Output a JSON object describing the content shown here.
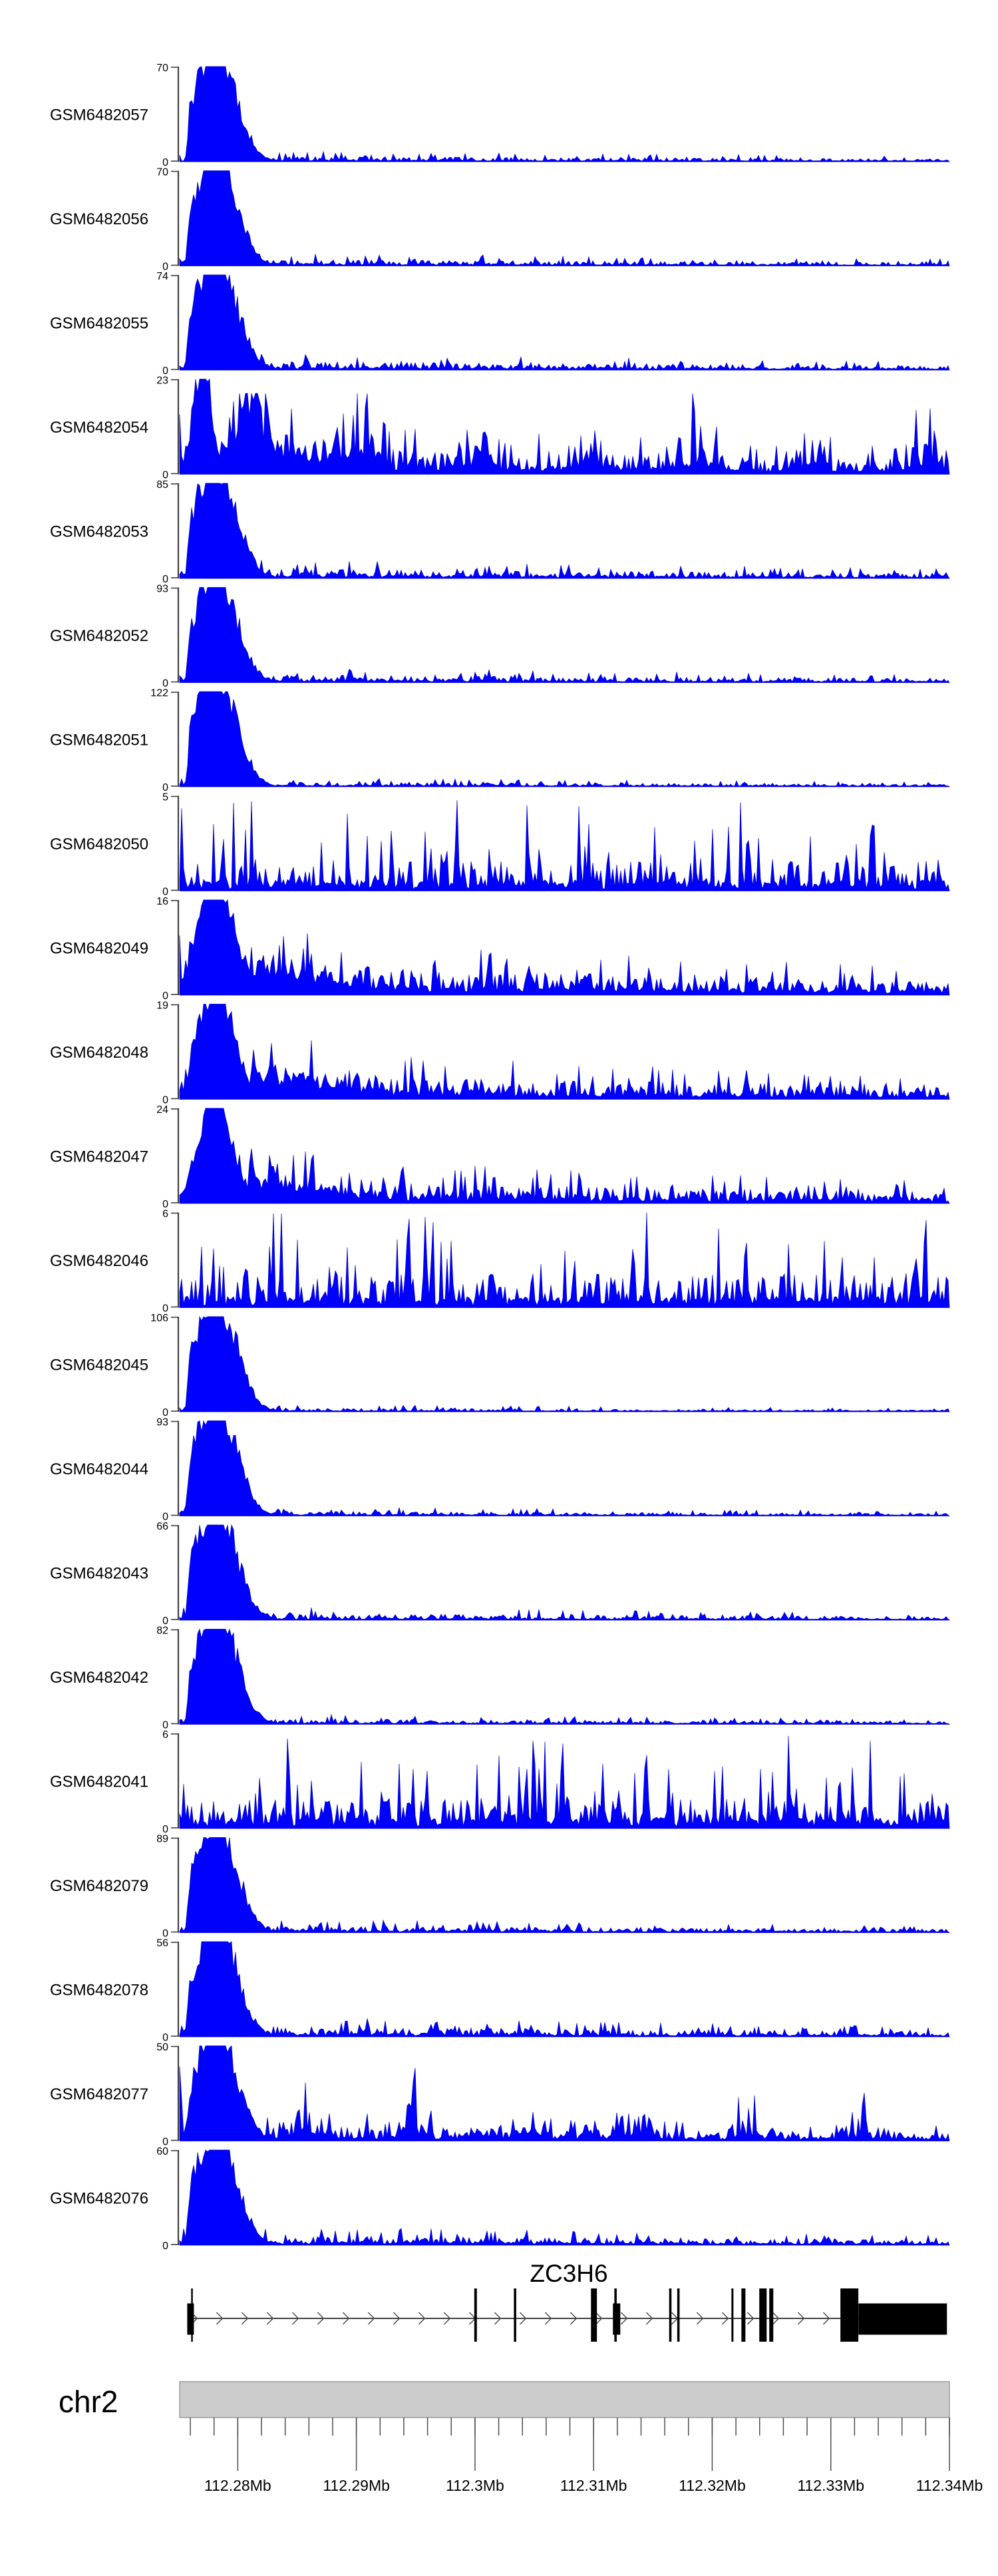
{
  "chart_data": {
    "type": "area",
    "description": "Stacked genome-browser read-coverage tracks over the ZC3H6 locus",
    "chromosome": "chr2",
    "region": {
      "start_mb": 112.2751,
      "end_mb": 112.34
    },
    "x_axis": {
      "unit": "Mb",
      "tick_labels": [
        "112.28Mb",
        "112.29Mb",
        "112.3Mb",
        "112.31Mb",
        "112.32Mb",
        "112.33Mb",
        "112.34Mb"
      ],
      "tick_positions_mb": [
        112.28,
        112.29,
        112.3,
        112.31,
        112.32,
        112.33,
        112.34
      ],
      "minor_tick_start_mb": 112.276,
      "minor_tick_interval_mb": 0.002,
      "minor_tick_count": 33
    },
    "y_axis": {
      "min_label": "0"
    },
    "tracks": [
      {
        "label": "GSM6482057",
        "ymax": 70,
        "ymin": 0,
        "profile": "peak",
        "tail": 0.032,
        "seed": 1
      },
      {
        "label": "GSM6482056",
        "ymax": 70,
        "ymin": 0,
        "profile": "peak",
        "tail": 0.04,
        "seed": 2
      },
      {
        "label": "GSM6482055",
        "ymax": 74,
        "ymin": 0,
        "profile": "peak",
        "tail": 0.05,
        "seed": 3
      },
      {
        "label": "GSM6482054",
        "ymax": 23,
        "ymin": 0,
        "profile": "peak",
        "peak_pos": 0.03,
        "peak_width": 0.011,
        "tail": 0.15,
        "mid": 0.3,
        "bumpy": true,
        "seed": 4
      },
      {
        "label": "GSM6482053",
        "ymax": 85,
        "ymin": 0,
        "profile": "peak",
        "tail": 0.055,
        "seed": 5
      },
      {
        "label": "GSM6482052",
        "ymax": 93,
        "ymin": 0,
        "profile": "peak",
        "tail": 0.045,
        "seed": 6
      },
      {
        "label": "GSM6482051",
        "ymax": 122,
        "ymin": 0,
        "profile": "peak",
        "tail": 0.028,
        "seed": 7
      },
      {
        "label": "GSM6482050",
        "ymax": 5,
        "ymin": 0,
        "profile": "noise",
        "level": 0.55,
        "seed": 8
      },
      {
        "label": "GSM6482049",
        "ymax": 16,
        "ymin": 0,
        "profile": "peak",
        "peak_width": 0.024,
        "tail": 0.16,
        "mid": 0.32,
        "seed": 9
      },
      {
        "label": "GSM6482048",
        "ymax": 19,
        "ymin": 0,
        "profile": "peak",
        "peak_width": 0.022,
        "tail": 0.14,
        "mid": 0.28,
        "seed": 10
      },
      {
        "label": "GSM6482047",
        "ymax": 24,
        "ymin": 0,
        "profile": "peak",
        "peak_width": 0.02,
        "tail": 0.13,
        "mid": 0.24,
        "seed": 11
      },
      {
        "label": "GSM6482046",
        "ymax": 6,
        "ymin": 0,
        "profile": "noise",
        "level": 0.62,
        "seed": 12
      },
      {
        "label": "GSM6482045",
        "ymax": 106,
        "ymin": 0,
        "profile": "peak",
        "tail": 0.022,
        "seed": 13
      },
      {
        "label": "GSM6482044",
        "ymax": 93,
        "ymin": 0,
        "profile": "peak",
        "tail": 0.028,
        "seed": 14
      },
      {
        "label": "GSM6482043",
        "ymax": 66,
        "ymin": 0,
        "profile": "peak",
        "tail": 0.04,
        "seed": 15
      },
      {
        "label": "GSM6482042",
        "ymax": 82,
        "ymin": 0,
        "profile": "peak",
        "tail": 0.03,
        "seed": 16
      },
      {
        "label": "GSM6482041",
        "ymax": 6,
        "ymin": 0,
        "profile": "noise",
        "level": 0.55,
        "seed": 17
      },
      {
        "label": "GSM6482079",
        "ymax": 89,
        "ymin": 0,
        "profile": "peak",
        "tail": 0.04,
        "seed": 18
      },
      {
        "label": "GSM6482078",
        "ymax": 56,
        "ymin": 0,
        "profile": "peak",
        "tail": 0.06,
        "seed": 19
      },
      {
        "label": "GSM6482077",
        "ymax": 50,
        "ymin": 0,
        "profile": "peak",
        "tail": 0.09,
        "bumpy": true,
        "seed": 20
      },
      {
        "label": "GSM6482076",
        "ymax": 60,
        "ymin": 0,
        "profile": "peak",
        "tail": 0.055,
        "seed": 21
      }
    ],
    "gene": {
      "name": "ZC3H6",
      "strand": "+",
      "span_mb": [
        112.27574,
        112.33979
      ],
      "full_exons_mb": [
        [
          112.27607,
          0.00014
        ],
        [
          112.29994,
          0.00022
        ],
        [
          112.30328,
          0.0002
        ],
        [
          112.30978,
          0.0005
        ],
        [
          112.31175,
          0.0002
        ],
        [
          112.31637,
          0.0002
        ],
        [
          112.31705,
          0.0002
        ],
        [
          112.32162,
          0.00017
        ],
        [
          112.32246,
          0.00034
        ],
        [
          112.32397,
          0.00062
        ],
        [
          112.32481,
          0.00034
        ],
        [
          112.33081,
          0.00151
        ]
      ],
      "half_exons_mb": [
        [
          112.27574,
          0.00056
        ],
        [
          112.31163,
          0.00062
        ],
        [
          112.33233,
          0.00746
        ]
      ]
    }
  },
  "colors": {
    "coverage_fill": "#0000FF",
    "coverage_stroke": "#0000C8",
    "axis": "#3f3f3f",
    "text": "#000000",
    "gene": "#000000",
    "arrow": "#4d4d4d",
    "ideogram_fill": "#cccccc",
    "ideogram_border": "#8c8c8c",
    "tick": "#4d4d4d"
  }
}
